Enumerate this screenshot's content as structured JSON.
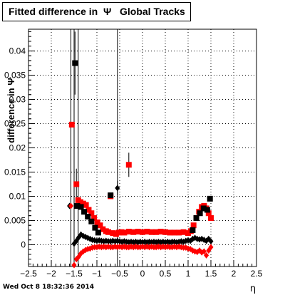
{
  "chart_data": {
    "type": "scatter",
    "title": "Fitted difference in  Ψ   Global Tracks",
    "ylabel": "difference in Ψ",
    "xlabel": "η",
    "xlim": [
      -2.5,
      2.5
    ],
    "ylim": [
      -0.0045,
      0.0445
    ],
    "x_ticks": [
      "−2.5",
      "−2",
      "−1.5",
      "−1",
      "−0.5",
      "0",
      "0.5",
      "1",
      "1.5",
      "2",
      "2.5"
    ],
    "y_ticks": [
      "0",
      "0.005",
      "0.01",
      "0.015",
      "0.02",
      "0.025",
      "0.03",
      "0.035",
      "0.04"
    ],
    "grid": true,
    "colors": {
      "black": "#000000",
      "red": "#ff0000"
    },
    "series": [
      {
        "marker": "square",
        "color": "#000000",
        "x": [
          -1.48,
          -1.43,
          -1.35,
          -1.28,
          -1.2,
          -1.12,
          -1.04,
          -0.97,
          -0.7,
          1.1,
          1.18,
          1.26,
          1.34,
          1.42,
          1.48
        ],
        "y": [
          0.0375,
          0.008,
          0.0078,
          0.0068,
          0.0058,
          0.0048,
          0.0035,
          0.0025,
          0.0102,
          0.003,
          0.0055,
          0.0065,
          0.0075,
          0.0072,
          0.0095
        ]
      },
      {
        "marker": "square",
        "color": "#ff0000",
        "x": [
          -1.55,
          -1.45,
          -1.41,
          -1.36,
          -1.3,
          -1.24,
          -1.18,
          -1.12,
          -1.06,
          -0.99,
          -0.93,
          -0.87,
          -0.8,
          -0.75,
          -0.65,
          -0.58,
          -0.52,
          -0.46,
          -0.4,
          -0.3,
          -0.2,
          -0.1,
          0.0,
          0.1,
          0.2,
          0.3,
          0.4,
          0.5,
          0.6,
          0.7,
          0.8,
          0.9,
          1.0,
          1.06,
          1.12,
          1.18,
          1.24,
          1.3,
          1.35,
          1.4,
          1.45,
          1.5
        ],
        "y": [
          0.0248,
          0.0125,
          0.0092,
          0.0088,
          0.0085,
          0.0082,
          0.0072,
          0.0065,
          0.0055,
          0.0046,
          0.004,
          0.0032,
          0.0028,
          0.0026,
          0.0024,
          0.0022,
          0.0025,
          0.0026,
          0.0025,
          0.0027,
          0.0026,
          0.0027,
          0.0026,
          0.0027,
          0.0026,
          0.0026,
          0.0027,
          0.0026,
          0.0025,
          0.0025,
          0.0025,
          0.0026,
          0.0024,
          0.0028,
          0.004,
          0.0055,
          0.0068,
          0.0078,
          0.008,
          0.0075,
          0.0065,
          0.0055
        ],
        "y_extra": {
          "x": [
            -0.7,
            -0.3
          ],
          "y": [
            0.01,
            0.0165
          ]
        }
      },
      {
        "marker": "diamond",
        "color": "#000000",
        "x": [
          -1.5,
          -1.45,
          -1.4,
          -1.35,
          -1.3,
          -1.25,
          -1.2,
          -1.15,
          -1.1,
          -1.05,
          -1.0,
          -0.95,
          -0.9,
          -0.85,
          -0.8,
          -0.75,
          -0.7,
          -0.65,
          -0.6,
          -0.55,
          -0.5,
          -0.45,
          -0.4,
          -0.35,
          -0.3,
          -0.25,
          -0.2,
          -0.15,
          -0.1,
          -0.05,
          0.0,
          0.05,
          0.1,
          0.15,
          0.2,
          0.25,
          0.3,
          0.35,
          0.4,
          0.45,
          0.5,
          0.55,
          0.6,
          0.65,
          0.7,
          0.75,
          0.8,
          0.85,
          0.9,
          0.95,
          1.0,
          1.05,
          1.1,
          1.15,
          1.2,
          1.25,
          1.3,
          1.35,
          1.4,
          1.45,
          1.5
        ],
        "y": [
          0.0002,
          0.0008,
          0.0015,
          0.0021,
          0.0018,
          0.0016,
          0.0014,
          0.0012,
          0.001,
          0.0009,
          0.0008,
          0.0009,
          0.0008,
          0.0007,
          0.0008,
          0.0007,
          0.0007,
          0.0008,
          0.0007,
          0.0008,
          0.0007,
          0.0006,
          0.0007,
          0.0006,
          0.0005,
          0.0006,
          0.0005,
          0.0006,
          0.0005,
          0.0006,
          0.0005,
          0.0006,
          0.0005,
          0.0006,
          0.0005,
          0.0006,
          0.0005,
          0.0006,
          0.0005,
          0.0006,
          0.0005,
          0.0006,
          0.0005,
          0.0006,
          0.0006,
          0.0005,
          0.0006,
          0.0007,
          0.0006,
          0.0008,
          0.0009,
          0.0008,
          0.0012,
          0.0014,
          0.0012,
          0.0011,
          0.0012,
          0.001,
          0.0008,
          0.0012,
          0.0007
        ],
        "extra": {
          "x": [
            -1.6,
            -0.55
          ],
          "y": [
            0.008,
            0.0117
          ]
        }
      },
      {
        "marker": "diamond",
        "color": "#ff0000",
        "x": [
          -1.5,
          -1.45,
          -1.4,
          -1.35,
          -1.3,
          -1.25,
          -1.2,
          -1.15,
          -1.1,
          -1.05,
          -1.0,
          -0.95,
          -0.9,
          -0.85,
          -0.8,
          -0.75,
          -0.7,
          -0.65,
          -0.6,
          -0.55,
          -0.5,
          -0.45,
          -0.4,
          -0.35,
          -0.3,
          -0.25,
          -0.2,
          -0.15,
          -0.1,
          -0.05,
          0.0,
          0.05,
          0.1,
          0.15,
          0.2,
          0.25,
          0.3,
          0.35,
          0.4,
          0.45,
          0.5,
          0.55,
          0.6,
          0.65,
          0.7,
          0.75,
          0.8,
          0.85,
          0.9,
          0.95,
          1.0,
          1.05,
          1.1,
          1.15,
          1.2,
          1.25,
          1.3,
          1.35,
          1.4,
          1.45,
          1.5
        ],
        "y": [
          -0.0042,
          -0.003,
          -0.0025,
          -0.0018,
          -0.0014,
          -0.0011,
          -0.0009,
          -0.0008,
          -0.0006,
          -0.0005,
          -0.0005,
          -0.0004,
          -0.0005,
          -0.0004,
          -0.0005,
          -0.0004,
          -0.0005,
          -0.0005,
          -0.0004,
          -0.0005,
          -0.0004,
          -0.0005,
          -0.0004,
          -0.0005,
          -0.0005,
          -0.0004,
          -0.0005,
          -0.0004,
          -0.0005,
          -0.0005,
          -0.0004,
          -0.0005,
          -0.0004,
          -0.0005,
          -0.0004,
          -0.0005,
          -0.0005,
          -0.0004,
          -0.0005,
          -0.0004,
          -0.0005,
          -0.0004,
          -0.0005,
          -0.0005,
          -0.0004,
          -0.0005,
          -0.0004,
          -0.0005,
          -0.0006,
          -0.0006,
          -0.0008,
          -0.0009,
          -0.0012,
          -0.0014,
          -0.0015,
          -0.0012,
          -0.0016,
          -0.0014,
          -0.0022,
          -0.0012,
          -0.0005
        ],
        "extra": {
          "x": [
            -1.57
          ],
          "y": [
            0.008
          ]
        }
      }
    ],
    "vertical_lines": [
      -1.57,
      -1.5,
      -1.41,
      -0.55
    ],
    "error_bars": [
      {
        "x": -1.48,
        "y": 0.0375,
        "err": 0.0065
      },
      {
        "x": -1.45,
        "y": 0.0125,
        "err": 0.0032
      },
      {
        "x": -0.3,
        "y": 0.0165,
        "err": 0.0025
      },
      {
        "x": -0.55,
        "y": 0.0117,
        "err": 0.0015
      }
    ]
  },
  "footer": "Wed Oct  8 18:32:36 2014"
}
